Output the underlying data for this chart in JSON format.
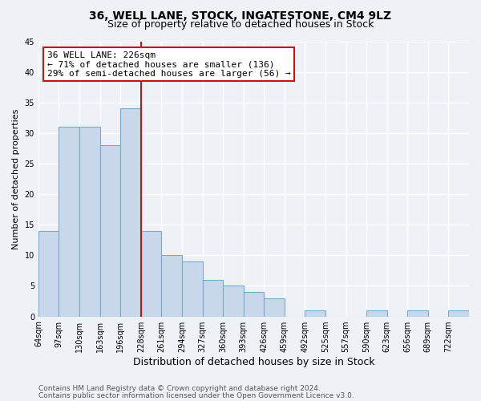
{
  "title": "36, WELL LANE, STOCK, INGATESTONE, CM4 9LZ",
  "subtitle": "Size of property relative to detached houses in Stock",
  "xlabel": "Distribution of detached houses by size in Stock",
  "ylabel": "Number of detached properties",
  "bin_labels": [
    "64sqm",
    "97sqm",
    "130sqm",
    "163sqm",
    "196sqm",
    "228sqm",
    "261sqm",
    "294sqm",
    "327sqm",
    "360sqm",
    "393sqm",
    "426sqm",
    "459sqm",
    "492sqm",
    "525sqm",
    "557sqm",
    "590sqm",
    "623sqm",
    "656sqm",
    "689sqm",
    "722sqm"
  ],
  "bar_heights": [
    14,
    31,
    31,
    28,
    34,
    14,
    10,
    9,
    6,
    5,
    4,
    3,
    0,
    1,
    0,
    0,
    1,
    0,
    1,
    0,
    1
  ],
  "bar_color": "#c8d8ea",
  "bar_edge_color": "#7aaac8",
  "property_line_idx": 5,
  "property_line_color": "#cc1111",
  "annotation_title": "36 WELL LANE: 226sqm",
  "annotation_line1": "← 71% of detached houses are smaller (136)",
  "annotation_line2": "29% of semi-detached houses are larger (56) →",
  "annotation_box_facecolor": "#ffffff",
  "annotation_box_edgecolor": "#cc1111",
  "ylim": [
    0,
    45
  ],
  "yticks": [
    0,
    5,
    10,
    15,
    20,
    25,
    30,
    35,
    40,
    45
  ],
  "background_color": "#eef2f7",
  "grid_color": "#ffffff",
  "footer1": "Contains HM Land Registry data © Crown copyright and database right 2024.",
  "footer2": "Contains public sector information licensed under the Open Government Licence v3.0.",
  "title_fontsize": 10,
  "subtitle_fontsize": 9,
  "xlabel_fontsize": 9,
  "ylabel_fontsize": 8,
  "tick_fontsize": 7,
  "footer_fontsize": 6.5
}
